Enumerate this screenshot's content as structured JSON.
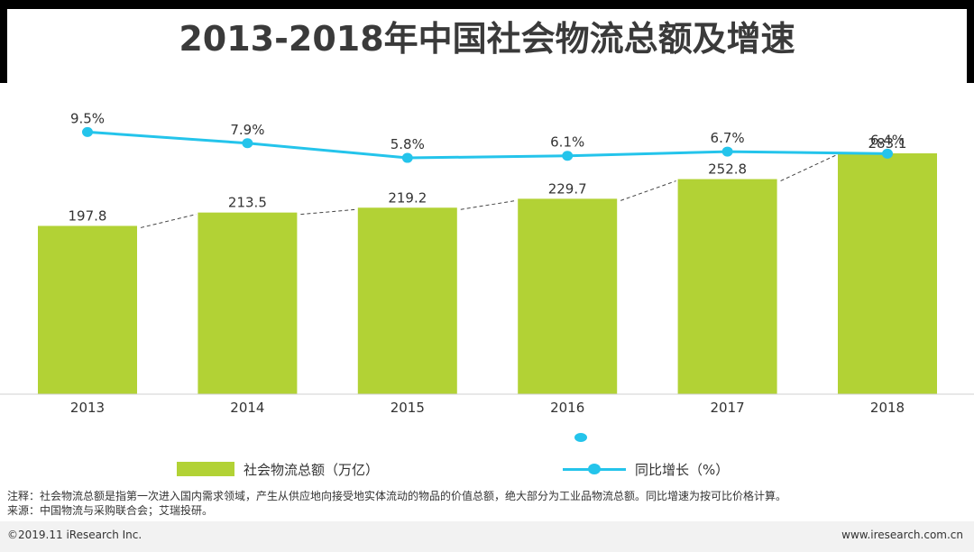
{
  "chart_data": {
    "type": "bar",
    "title": "2013-2018年中国社会物流总额及增速",
    "categories": [
      "2013",
      "2014",
      "2015",
      "2016",
      "2017",
      "2018"
    ],
    "series": [
      {
        "name": "社会物流总额（万亿）",
        "type": "bar",
        "color": "#b2d235",
        "values": [
          197.8,
          213.5,
          219.2,
          229.7,
          252.8,
          283.1
        ],
        "labels": [
          "197.8",
          "213.5",
          "219.2",
          "229.7",
          "252.8",
          "283.1"
        ]
      },
      {
        "name": "同比增长（%）",
        "type": "line",
        "color": "#24c4eb",
        "values": [
          9.5,
          7.9,
          5.8,
          6.1,
          6.7,
          6.4
        ],
        "labels": [
          "9.5%",
          "7.9%",
          "5.8%",
          "6.1%",
          "6.7%",
          "6.4%"
        ]
      }
    ],
    "ylim_bar": [
      0,
      283.1
    ],
    "ylim_line": [
      0,
      20
    ],
    "trend_line": "dashed",
    "legend_position": "bottom"
  },
  "notes": {
    "note": "注释：社会物流总额是指第一次进入国内需求领域，产生从供应地向接受地实体流动的物品的价值总额，绝大部分为工业品物流总额。同比增速为按可比价格计算。",
    "source": "来源：中国物流与采购联合会；艾瑞投研。"
  },
  "footer": {
    "copyright": "©2019.11 iResearch Inc.",
    "website": "www.iresearch.com.cn"
  }
}
